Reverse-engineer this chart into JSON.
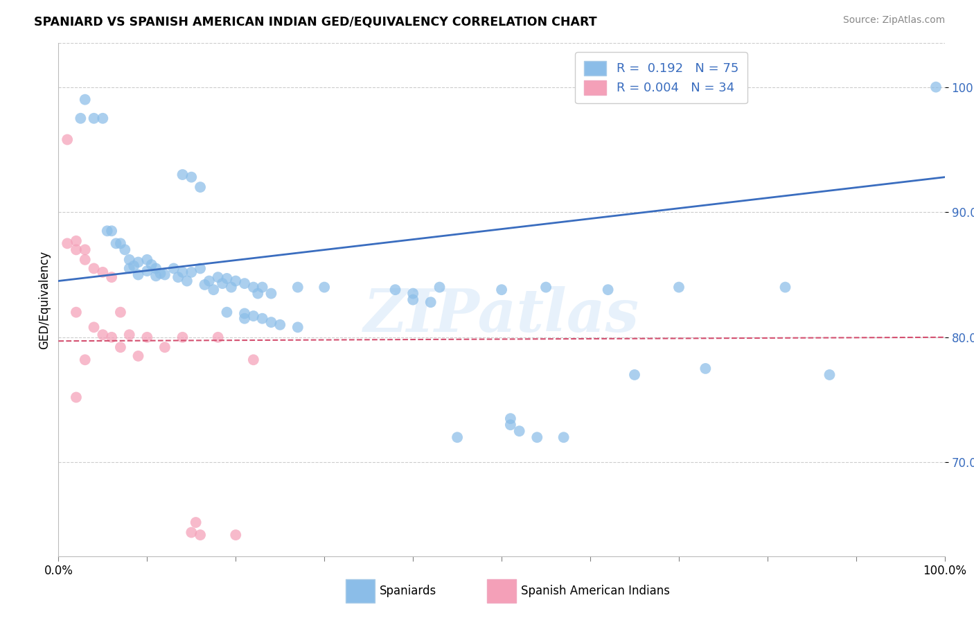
{
  "title": "SPANIARD VS SPANISH AMERICAN INDIAN GED/EQUIVALENCY CORRELATION CHART",
  "source": "Source: ZipAtlas.com",
  "ylabel": "GED/Equivalency",
  "xlim": [
    0.0,
    1.0
  ],
  "ylim": [
    0.625,
    1.035
  ],
  "yticks": [
    0.7,
    0.8,
    0.9,
    1.0
  ],
  "ytick_labels": [
    "70.0%",
    "80.0%",
    "90.0%",
    "100.0%"
  ],
  "xticks": [
    0.0,
    0.1,
    0.2,
    0.3,
    0.4,
    0.5,
    0.6,
    0.7,
    0.8,
    0.9,
    1.0
  ],
  "xtick_labels": [
    "0.0%",
    "",
    "",
    "",
    "",
    "",
    "",
    "",
    "",
    "",
    "100.0%"
  ],
  "legend_r1": "R =  0.192",
  "legend_n1": "N = 75",
  "legend_r2": "R = 0.004",
  "legend_n2": "N = 34",
  "color_blue": "#8BBDE8",
  "color_pink": "#F4A0B8",
  "line_blue": "#3A6DBF",
  "line_pink": "#D45070",
  "background": "#FFFFFF",
  "watermark": "ZIPatlas",
  "legend1_label": "Spaniards",
  "legend2_label": "Spanish American Indians",
  "spaniards_x": [
    0.025,
    0.03,
    0.04,
    0.05,
    0.055,
    0.06,
    0.065,
    0.07,
    0.075,
    0.08,
    0.08,
    0.085,
    0.09,
    0.09,
    0.1,
    0.1,
    0.105,
    0.11,
    0.11,
    0.115,
    0.12,
    0.13,
    0.135,
    0.14,
    0.145,
    0.15,
    0.16,
    0.165,
    0.17,
    0.175,
    0.18,
    0.185,
    0.19,
    0.195,
    0.2,
    0.21,
    0.22,
    0.225,
    0.23,
    0.24,
    0.27,
    0.3,
    0.38,
    0.4,
    0.43,
    0.45,
    0.5,
    0.51,
    0.55,
    0.57,
    0.62,
    0.65,
    0.7,
    0.73,
    0.82,
    0.87,
    0.99,
    0.14,
    0.15,
    0.16,
    0.19,
    0.21,
    0.21,
    0.22,
    0.23,
    0.24,
    0.25,
    0.27,
    0.4,
    0.42,
    0.51,
    0.52,
    0.54
  ],
  "spaniards_y": [
    0.975,
    0.99,
    0.975,
    0.975,
    0.885,
    0.885,
    0.875,
    0.875,
    0.87,
    0.862,
    0.855,
    0.857,
    0.86,
    0.85,
    0.862,
    0.853,
    0.858,
    0.855,
    0.849,
    0.851,
    0.85,
    0.855,
    0.848,
    0.852,
    0.845,
    0.852,
    0.855,
    0.842,
    0.845,
    0.838,
    0.848,
    0.843,
    0.847,
    0.84,
    0.845,
    0.843,
    0.84,
    0.835,
    0.84,
    0.835,
    0.84,
    0.84,
    0.838,
    0.835,
    0.84,
    0.72,
    0.838,
    0.73,
    0.84,
    0.72,
    0.838,
    0.77,
    0.84,
    0.775,
    0.84,
    0.77,
    1.0,
    0.93,
    0.928,
    0.92,
    0.82,
    0.819,
    0.815,
    0.817,
    0.815,
    0.812,
    0.81,
    0.808,
    0.83,
    0.828,
    0.735,
    0.725,
    0.72
  ],
  "spanish_ai_x": [
    0.01,
    0.01,
    0.02,
    0.02,
    0.02,
    0.02,
    0.03,
    0.03,
    0.03,
    0.04,
    0.04,
    0.05,
    0.05,
    0.06,
    0.06,
    0.07,
    0.07,
    0.08,
    0.09,
    0.1,
    0.12,
    0.14,
    0.15,
    0.155,
    0.16,
    0.18,
    0.2,
    0.22
  ],
  "spanish_ai_y": [
    0.958,
    0.875,
    0.877,
    0.87,
    0.82,
    0.752,
    0.87,
    0.862,
    0.782,
    0.855,
    0.808,
    0.852,
    0.802,
    0.848,
    0.8,
    0.82,
    0.792,
    0.802,
    0.785,
    0.8,
    0.792,
    0.8,
    0.644,
    0.652,
    0.642,
    0.8,
    0.642,
    0.782
  ]
}
